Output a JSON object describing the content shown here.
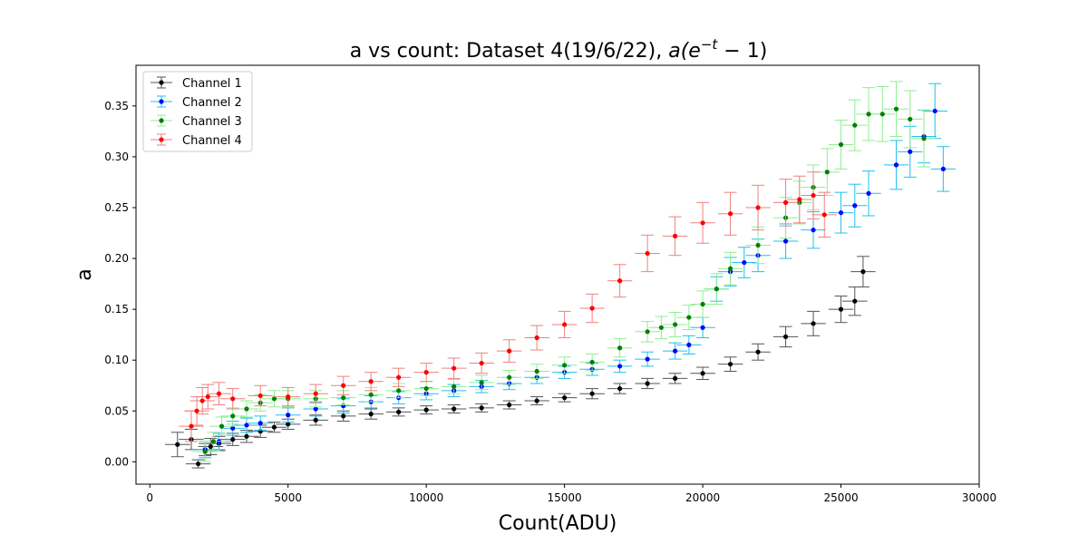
{
  "chart_data": {
    "type": "scatter",
    "title": "a vs count: Dataset 4(19/6/22), a(e^{-t} − 1)",
    "title_plain": "a vs count: Dataset 4(19/6/22), ",
    "title_math": "a(e",
    "title_sup": "−t",
    "title_tail": " − 1)",
    "xlabel": "Count(ADU)",
    "ylabel": "a",
    "xlim": [
      -500,
      30000
    ],
    "ylim": [
      -0.022,
      0.39
    ],
    "xticks": [
      0,
      5000,
      10000,
      15000,
      20000,
      25000,
      30000
    ],
    "yticks": [
      0.0,
      0.05,
      0.1,
      0.15,
      0.2,
      0.25,
      0.3,
      0.35
    ],
    "xtick_labels": [
      "0",
      "5000",
      "10000",
      "15000",
      "20000",
      "25000",
      "30000"
    ],
    "ytick_labels": [
      "0.00",
      "0.05",
      "0.10",
      "0.15",
      "0.20",
      "0.25",
      "0.30",
      "0.35"
    ],
    "grid": false,
    "legend_position": "top-left",
    "series": [
      {
        "name": "Channel 1",
        "marker_color": "#000000",
        "errorbar_color": "#555555",
        "x_error": 450,
        "points": [
          [
            1000,
            0.017,
            0.012
          ],
          [
            1500,
            0.022,
            0.01
          ],
          [
            1750,
            -0.002,
            0.004
          ],
          [
            2000,
            0.012,
            0.006
          ],
          [
            2200,
            0.015,
            0.008
          ],
          [
            2500,
            0.018,
            0.007
          ],
          [
            3000,
            0.022,
            0.006
          ],
          [
            3500,
            0.025,
            0.006
          ],
          [
            4000,
            0.03,
            0.006
          ],
          [
            4500,
            0.034,
            0.005
          ],
          [
            5000,
            0.037,
            0.005
          ],
          [
            6000,
            0.041,
            0.005
          ],
          [
            7000,
            0.045,
            0.005
          ],
          [
            8000,
            0.047,
            0.005
          ],
          [
            9000,
            0.049,
            0.004
          ],
          [
            10000,
            0.051,
            0.004
          ],
          [
            11000,
            0.052,
            0.004
          ],
          [
            12000,
            0.053,
            0.004
          ],
          [
            13000,
            0.056,
            0.004
          ],
          [
            14000,
            0.06,
            0.004
          ],
          [
            15000,
            0.063,
            0.004
          ],
          [
            16000,
            0.067,
            0.005
          ],
          [
            17000,
            0.072,
            0.005
          ],
          [
            18000,
            0.077,
            0.005
          ],
          [
            19000,
            0.082,
            0.005
          ],
          [
            20000,
            0.087,
            0.006
          ],
          [
            21000,
            0.096,
            0.007
          ],
          [
            22000,
            0.108,
            0.008
          ],
          [
            23000,
            0.123,
            0.01
          ],
          [
            24000,
            0.136,
            0.012
          ],
          [
            25000,
            0.15,
            0.013
          ],
          [
            25500,
            0.158,
            0.014
          ],
          [
            25800,
            0.187,
            0.015
          ]
        ]
      },
      {
        "name": "Channel 2",
        "marker_color": "#0000ff",
        "errorbar_color": "#1ec0f0",
        "x_error": 450,
        "points": [
          [
            2000,
            0.012,
            0.008
          ],
          [
            2500,
            0.02,
            0.008
          ],
          [
            3000,
            0.033,
            0.007
          ],
          [
            3500,
            0.036,
            0.007
          ],
          [
            4000,
            0.038,
            0.007
          ],
          [
            5000,
            0.046,
            0.007
          ],
          [
            6000,
            0.052,
            0.007
          ],
          [
            7000,
            0.055,
            0.007
          ],
          [
            8000,
            0.059,
            0.006
          ],
          [
            9000,
            0.063,
            0.006
          ],
          [
            10000,
            0.067,
            0.006
          ],
          [
            11000,
            0.07,
            0.006
          ],
          [
            12000,
            0.074,
            0.006
          ],
          [
            13000,
            0.077,
            0.006
          ],
          [
            14000,
            0.083,
            0.006
          ],
          [
            15000,
            0.088,
            0.006
          ],
          [
            16000,
            0.091,
            0.006
          ],
          [
            17000,
            0.094,
            0.006
          ],
          [
            18000,
            0.101,
            0.007
          ],
          [
            19000,
            0.109,
            0.008
          ],
          [
            19500,
            0.115,
            0.009
          ],
          [
            20000,
            0.132,
            0.01
          ],
          [
            20500,
            0.17,
            0.012
          ],
          [
            21000,
            0.187,
            0.014
          ],
          [
            21500,
            0.196,
            0.015
          ],
          [
            22000,
            0.203,
            0.016
          ],
          [
            23000,
            0.217,
            0.017
          ],
          [
            24000,
            0.228,
            0.018
          ],
          [
            25000,
            0.245,
            0.02
          ],
          [
            25500,
            0.252,
            0.021
          ],
          [
            26000,
            0.264,
            0.022
          ],
          [
            27000,
            0.292,
            0.024
          ],
          [
            27500,
            0.305,
            0.025
          ],
          [
            28000,
            0.32,
            0.026
          ],
          [
            28400,
            0.345,
            0.027
          ],
          [
            28700,
            0.288,
            0.022
          ]
        ]
      },
      {
        "name": "Channel 3",
        "marker_color": "#008000",
        "errorbar_color": "#90ee90",
        "x_error": 450,
        "points": [
          [
            2000,
            0.01,
            0.01
          ],
          [
            2300,
            0.02,
            0.009
          ],
          [
            2600,
            0.035,
            0.009
          ],
          [
            3000,
            0.045,
            0.008
          ],
          [
            3500,
            0.052,
            0.008
          ],
          [
            4000,
            0.058,
            0.008
          ],
          [
            4500,
            0.062,
            0.008
          ],
          [
            5000,
            0.062,
            0.008
          ],
          [
            6000,
            0.062,
            0.008
          ],
          [
            7000,
            0.063,
            0.007
          ],
          [
            8000,
            0.066,
            0.007
          ],
          [
            9000,
            0.07,
            0.007
          ],
          [
            10000,
            0.072,
            0.007
          ],
          [
            11000,
            0.074,
            0.007
          ],
          [
            12000,
            0.078,
            0.007
          ],
          [
            13000,
            0.083,
            0.007
          ],
          [
            14000,
            0.089,
            0.007
          ],
          [
            15000,
            0.095,
            0.008
          ],
          [
            16000,
            0.098,
            0.008
          ],
          [
            17000,
            0.112,
            0.009
          ],
          [
            18000,
            0.128,
            0.01
          ],
          [
            18500,
            0.132,
            0.011
          ],
          [
            19000,
            0.135,
            0.012
          ],
          [
            19500,
            0.142,
            0.012
          ],
          [
            20000,
            0.155,
            0.013
          ],
          [
            20500,
            0.17,
            0.015
          ],
          [
            21000,
            0.19,
            0.016
          ],
          [
            22000,
            0.213,
            0.018
          ],
          [
            23000,
            0.24,
            0.02
          ],
          [
            23500,
            0.255,
            0.021
          ],
          [
            24000,
            0.27,
            0.022
          ],
          [
            24500,
            0.285,
            0.023
          ],
          [
            25000,
            0.312,
            0.024
          ],
          [
            25500,
            0.331,
            0.025
          ],
          [
            26000,
            0.342,
            0.026
          ],
          [
            26500,
            0.342,
            0.027
          ],
          [
            27000,
            0.347,
            0.027
          ],
          [
            27500,
            0.337,
            0.028
          ],
          [
            28000,
            0.318,
            0.028
          ]
        ]
      },
      {
        "name": "Channel 4",
        "marker_color": "#ff0000",
        "errorbar_color": "#f08080",
        "x_error": 450,
        "points": [
          [
            1500,
            0.035,
            0.015
          ],
          [
            1700,
            0.05,
            0.014
          ],
          [
            1900,
            0.06,
            0.013
          ],
          [
            2100,
            0.064,
            0.012
          ],
          [
            2500,
            0.067,
            0.011
          ],
          [
            3000,
            0.062,
            0.01
          ],
          [
            4000,
            0.065,
            0.01
          ],
          [
            5000,
            0.064,
            0.009
          ],
          [
            6000,
            0.067,
            0.009
          ],
          [
            7000,
            0.075,
            0.009
          ],
          [
            8000,
            0.079,
            0.009
          ],
          [
            9000,
            0.083,
            0.009
          ],
          [
            10000,
            0.088,
            0.009
          ],
          [
            11000,
            0.092,
            0.01
          ],
          [
            12000,
            0.097,
            0.01
          ],
          [
            13000,
            0.109,
            0.011
          ],
          [
            14000,
            0.122,
            0.012
          ],
          [
            15000,
            0.135,
            0.013
          ],
          [
            16000,
            0.151,
            0.014
          ],
          [
            17000,
            0.178,
            0.016
          ],
          [
            18000,
            0.205,
            0.018
          ],
          [
            19000,
            0.222,
            0.019
          ],
          [
            20000,
            0.235,
            0.02
          ],
          [
            21000,
            0.244,
            0.021
          ],
          [
            22000,
            0.25,
            0.022
          ],
          [
            23000,
            0.255,
            0.023
          ],
          [
            23500,
            0.258,
            0.023
          ],
          [
            24000,
            0.262,
            0.023
          ],
          [
            24400,
            0.243,
            0.022
          ]
        ]
      }
    ]
  }
}
